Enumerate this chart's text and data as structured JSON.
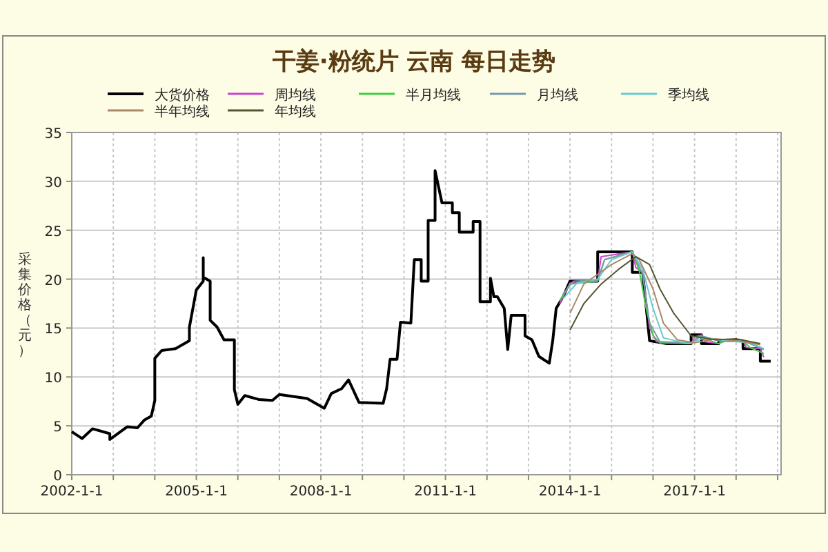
{
  "chart_data": {
    "type": "line",
    "title": "干姜·粉统片 云南 每日走势",
    "ylabel": "采集价格（元）",
    "legend": "top",
    "grid": true,
    "line_style": "solid",
    "marker": "none",
    "xlim": [
      "2002-01",
      "2019-02"
    ],
    "ylim": [
      0,
      35
    ],
    "yticks": [
      0,
      5,
      10,
      15,
      20,
      25,
      30,
      35
    ],
    "xticks": [
      {
        "value": "2002-01",
        "label": "2002-1-1"
      },
      {
        "value": "2003-01",
        "label": null
      },
      {
        "value": "2004-01",
        "label": null
      },
      {
        "value": "2005-01",
        "label": "2005-1-1"
      },
      {
        "value": "2006-01",
        "label": null
      },
      {
        "value": "2007-01",
        "label": null
      },
      {
        "value": "2008-01",
        "label": "2008-1-1"
      },
      {
        "value": "2009-01",
        "label": null
      },
      {
        "value": "2010-01",
        "label": null
      },
      {
        "value": "2011-01",
        "label": "2011-1-1"
      },
      {
        "value": "2012-01",
        "label": null
      },
      {
        "value": "2013-01",
        "label": null
      },
      {
        "value": "2014-01",
        "label": "2014-1-1"
      },
      {
        "value": "2015-01",
        "label": null
      },
      {
        "value": "2016-01",
        "label": null
      },
      {
        "value": "2017-01",
        "label": "2017-1-1"
      },
      {
        "value": "2018-01",
        "label": null
      },
      {
        "value": "2019-01",
        "label": null
      }
    ],
    "series": [
      {
        "name": "大货价格",
        "color": "#000000",
        "x": [
          "2002-01",
          "2002-04",
          "2002-07",
          "2002-12",
          "2002-12",
          "2003-05",
          "2003-08",
          "2003-10",
          "2003-12",
          "2004-01",
          "2004-01",
          "2004-03",
          "2004-07",
          "2004-11",
          "2004-11",
          "2004-12",
          "2005-01",
          "2005-03",
          "2005-03",
          "2005-03",
          "2005-05",
          "2005-05",
          "2005-07",
          "2005-09",
          "2005-12",
          "2005-12",
          "2006-01",
          "2006-03",
          "2006-07",
          "2006-11",
          "2007-01",
          "2007-09",
          "2008-02",
          "2008-04",
          "2008-07",
          "2008-09",
          "2008-12",
          "2009-07",
          "2009-08",
          "2009-09",
          "2009-11",
          "2009-12",
          "2010-03",
          "2010-04",
          "2010-06",
          "2010-06",
          "2010-08",
          "2010-08",
          "2010-10",
          "2010-10",
          "2010-12",
          "2011-03",
          "2011-03",
          "2011-05",
          "2011-05",
          "2011-09",
          "2011-09",
          "2011-11",
          "2011-11",
          "2012-02",
          "2012-02",
          "2012-03",
          "2012-04",
          "2012-06",
          "2012-07",
          "2012-08",
          "2012-12",
          "2012-12",
          "2013-02",
          "2013-04",
          "2013-07",
          "2013-08",
          "2013-09",
          "2013-11",
          "2014-01",
          "2014-09",
          "2014-09",
          "2015-07",
          "2015-07",
          "2015-10",
          "2015-12",
          "2016-05",
          "2016-12",
          "2016-12",
          "2017-03",
          "2017-03",
          "2017-08",
          "2017-08",
          "2018-03",
          "2018-03",
          "2018-08",
          "2018-08",
          "2018-11"
        ],
        "values": [
          4.4,
          3.7,
          4.7,
          4.2,
          3.6,
          4.9,
          4.8,
          5.6,
          6.0,
          7.6,
          11.9,
          12.7,
          12.9,
          13.7,
          15.1,
          17.0,
          18.9,
          19.8,
          22.2,
          20.2,
          19.8,
          15.8,
          15.1,
          13.8,
          13.8,
          8.7,
          7.2,
          8.1,
          7.7,
          7.6,
          8.2,
          7.8,
          6.8,
          8.3,
          8.8,
          9.7,
          7.4,
          7.3,
          8.8,
          11.8,
          11.8,
          15.6,
          15.5,
          22.0,
          22.0,
          19.8,
          19.8,
          26.0,
          26.0,
          31.1,
          27.8,
          27.8,
          26.8,
          26.8,
          24.8,
          24.8,
          25.9,
          25.9,
          17.7,
          17.7,
          20.1,
          18.2,
          18.2,
          17.0,
          12.8,
          16.3,
          16.3,
          14.2,
          13.8,
          12.1,
          11.4,
          13.7,
          17.0,
          18.2,
          19.8,
          19.8,
          22.8,
          22.8,
          20.7,
          20.7,
          13.7,
          13.4,
          13.4,
          14.3,
          14.3,
          13.4,
          13.4,
          13.7,
          13.7,
          12.9,
          12.9,
          11.6,
          11.6
        ]
      },
      {
        "name": "周均线",
        "color": "#cc44cc",
        "x": [
          "2013-10",
          "2014-01",
          "2014-09",
          "2014-10",
          "2015-07",
          "2015-08",
          "2015-10",
          "2015-12",
          "2016-02",
          "2016-12",
          "2017-01",
          "2017-03",
          "2017-04",
          "2017-08",
          "2017-09",
          "2018-03",
          "2018-04",
          "2018-08",
          "2018-09"
        ],
        "values": [
          17.5,
          19.6,
          19.8,
          22.3,
          22.8,
          21.2,
          20.7,
          15.0,
          13.6,
          13.4,
          14.1,
          14.3,
          13.6,
          13.4,
          13.7,
          13.7,
          13.0,
          12.9,
          12.0
        ]
      },
      {
        "name": "半月均线",
        "color": "#44cc44",
        "x": [
          "2013-10",
          "2014-01",
          "2014-09",
          "2014-11",
          "2015-07",
          "2015-09",
          "2015-11",
          "2016-01",
          "2016-03",
          "2016-12",
          "2017-02",
          "2017-04",
          "2017-08",
          "2017-10",
          "2018-03",
          "2018-05",
          "2018-09"
        ],
        "values": [
          17.8,
          19.5,
          19.8,
          22.0,
          22.8,
          20.9,
          17.0,
          14.2,
          13.5,
          13.4,
          14.1,
          13.9,
          13.4,
          13.7,
          13.7,
          13.0,
          12.4
        ]
      },
      {
        "name": "月均线",
        "color": "#7799aa",
        "x": [
          "2013-11",
          "2014-02",
          "2014-09",
          "2014-11",
          "2015-07",
          "2015-10",
          "2015-12",
          "2016-03",
          "2016-12",
          "2017-03",
          "2017-09",
          "2018-03",
          "2018-09"
        ],
        "values": [
          18.5,
          19.8,
          19.9,
          22.0,
          22.8,
          20.5,
          15.5,
          13.6,
          13.5,
          14.2,
          13.6,
          13.7,
          12.8
        ]
      },
      {
        "name": "季均线",
        "color": "#66cccc",
        "x": [
          "2013-11",
          "2014-03",
          "2014-09",
          "2015-01",
          "2015-07",
          "2015-10",
          "2016-01",
          "2016-04",
          "2016-11",
          "2017-04",
          "2017-10",
          "2018-05",
          "2018-09"
        ],
        "values": [
          18.0,
          19.6,
          20.0,
          22.0,
          22.8,
          21.0,
          17.0,
          14.0,
          13.4,
          14.0,
          13.7,
          13.5,
          12.9
        ]
      },
      {
        "name": "半年均线",
        "color": "#aa8866",
        "x": [
          "2014-01",
          "2014-05",
          "2014-09",
          "2015-01",
          "2015-07",
          "2015-09",
          "2016-01",
          "2016-04",
          "2016-08",
          "2017-01",
          "2017-07",
          "2018-01",
          "2018-08"
        ],
        "values": [
          16.5,
          19.5,
          20.5,
          21.5,
          22.6,
          22.0,
          19.0,
          15.5,
          13.8,
          13.5,
          13.9,
          13.7,
          13.3
        ]
      },
      {
        "name": "年均线",
        "color": "#555533",
        "x": [
          "2014-01",
          "2014-05",
          "2014-10",
          "2015-03",
          "2015-08",
          "2015-12",
          "2016-03",
          "2016-07",
          "2016-12",
          "2017-07",
          "2018-01",
          "2018-08"
        ],
        "values": [
          14.8,
          17.5,
          19.5,
          21.0,
          22.3,
          21.5,
          19.0,
          16.5,
          14.2,
          13.8,
          13.9,
          13.4
        ]
      }
    ]
  }
}
